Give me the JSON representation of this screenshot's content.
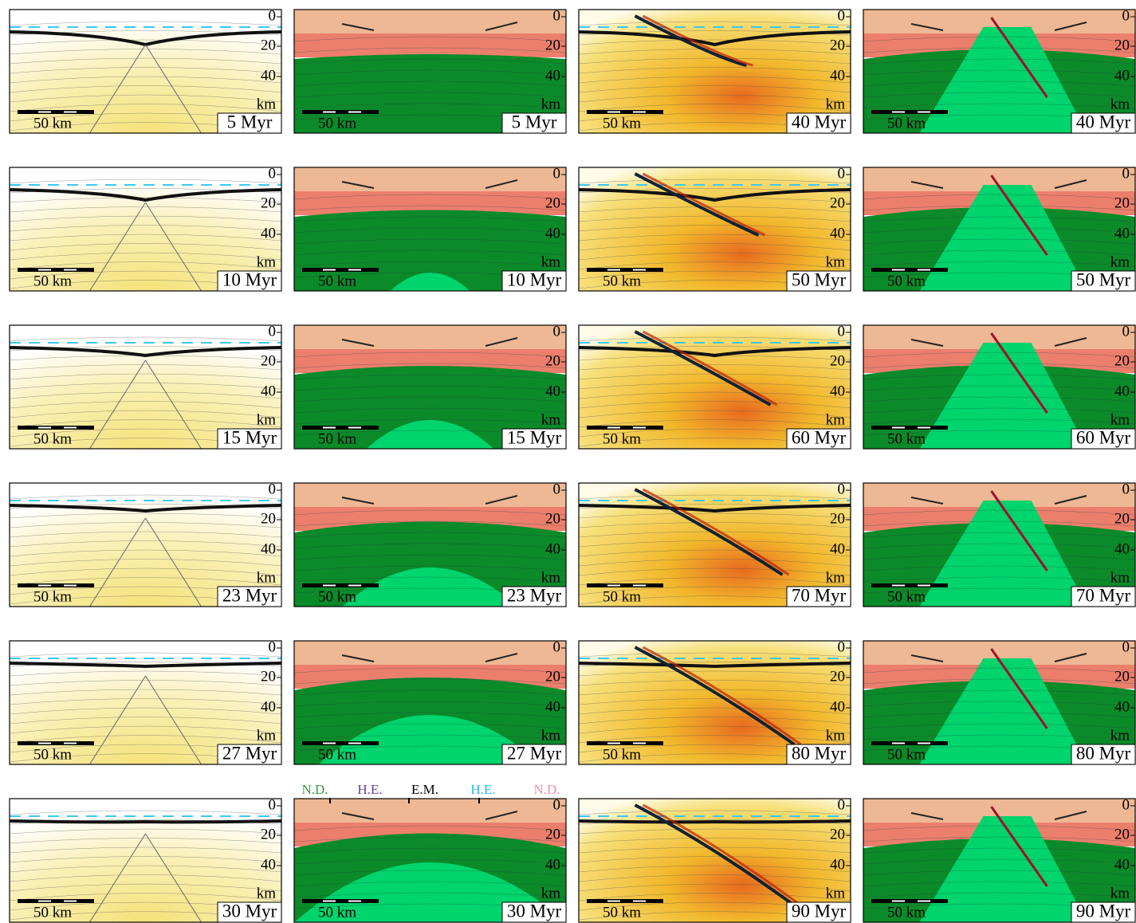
{
  "axis": {
    "ticks": [
      "0",
      "20",
      "40"
    ],
    "unit": "km"
  },
  "scale_bar": "50 km",
  "columns": [
    {
      "kind": "field",
      "times": [
        "5 Myr",
        "10 Myr",
        "15 Myr",
        "23 Myr",
        "27 Myr",
        "30 Myr"
      ]
    },
    {
      "kind": "layers",
      "times": [
        "5 Myr",
        "10 Myr",
        "15 Myr",
        "23 Myr",
        "27 Myr",
        "30 Myr"
      ]
    },
    {
      "kind": "field-fault",
      "times": [
        "40 Myr",
        "50 Myr",
        "60 Myr",
        "70 Myr",
        "80 Myr",
        "90 Myr"
      ]
    },
    {
      "kind": "layers-fault",
      "times": [
        "40 Myr",
        "50 Myr",
        "60 Myr",
        "70 Myr",
        "80 Myr",
        "90 Myr"
      ]
    }
  ],
  "legend": [
    {
      "label": "N.D.",
      "color": "#2e9e3a"
    },
    {
      "label": "H.E.",
      "color": "#6a3d9a"
    },
    {
      "label": "E.M.",
      "color": "#000000"
    },
    {
      "label": "H.E.",
      "color": "#2bb8e8"
    },
    {
      "label": "N.D.",
      "color": "#f08cb4"
    }
  ]
}
